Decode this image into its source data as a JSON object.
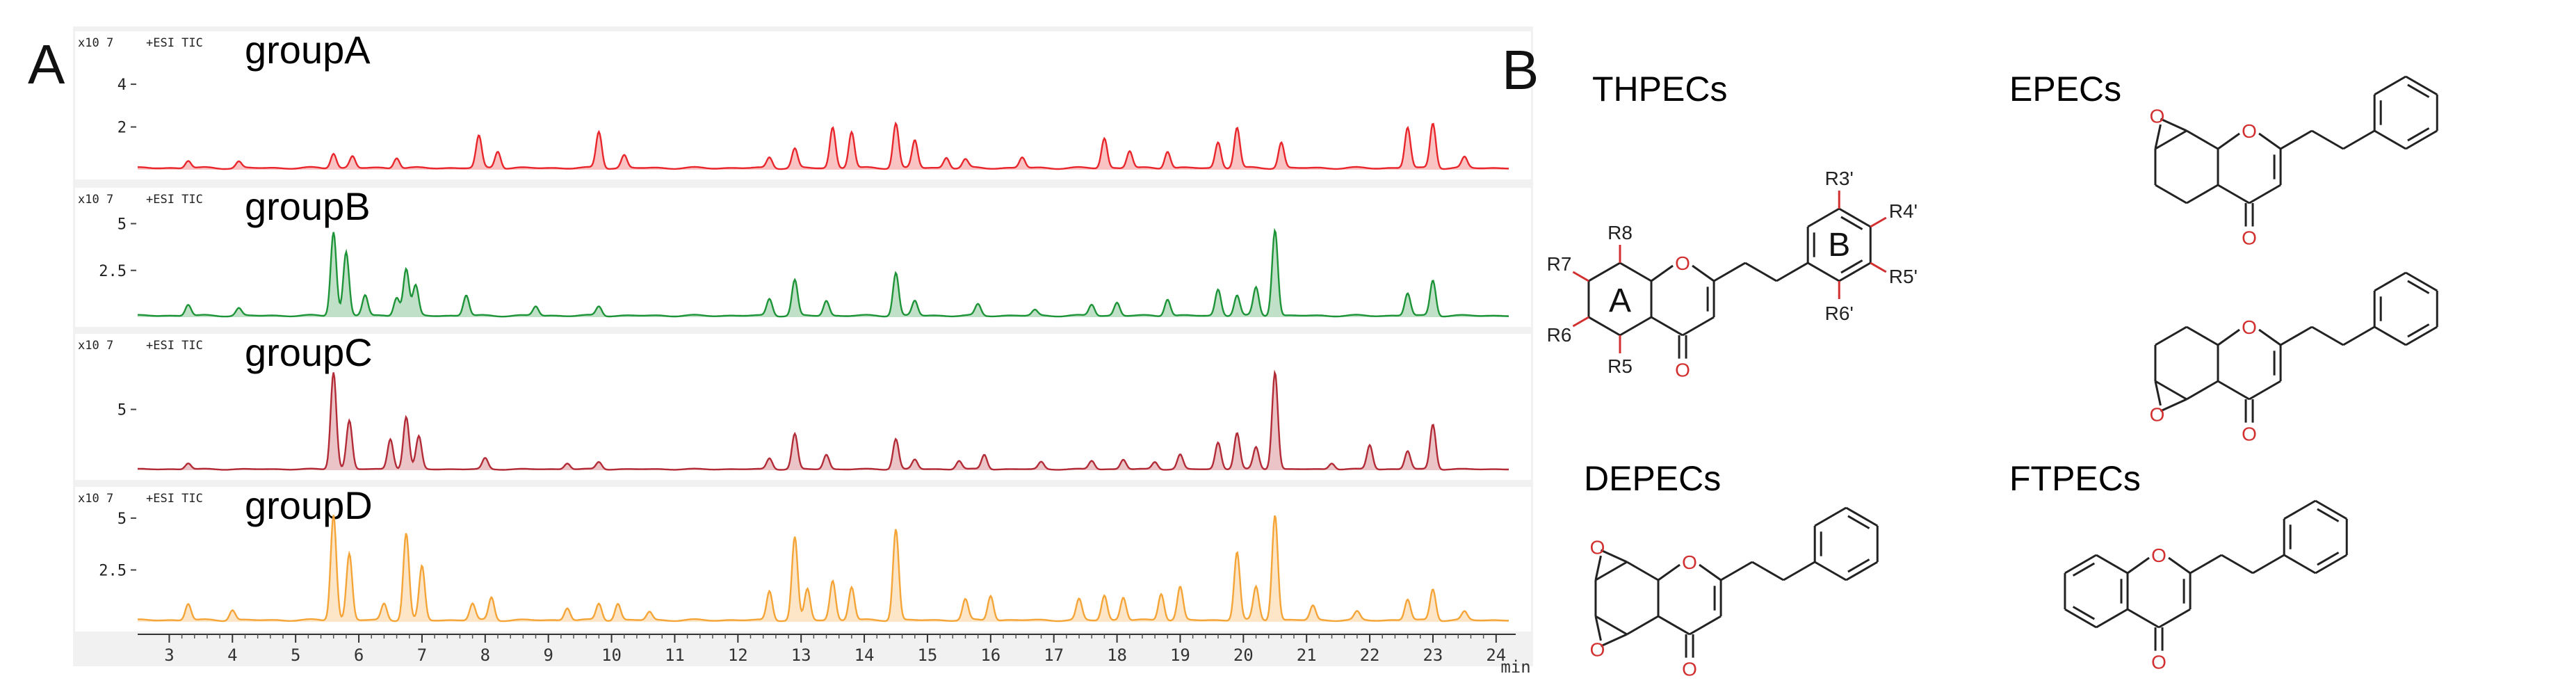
{
  "panels": {
    "A": "A",
    "B": "B"
  },
  "chart_data": {
    "type": "line",
    "title": "",
    "xlabel": "min",
    "xlim": [
      2.5,
      24.2
    ],
    "x_ticks": [
      3,
      4,
      5,
      6,
      7,
      8,
      9,
      10,
      11,
      12,
      13,
      14,
      15,
      16,
      17,
      18,
      19,
      20,
      21,
      22,
      23,
      24
    ],
    "series": [
      {
        "name": "groupA",
        "scale": "x10 7",
        "mode": "+ESI TIC",
        "color": "#e8262b",
        "ylim": [
          0,
          5.5
        ],
        "yticks": [
          2,
          4
        ],
        "peaks": [
          [
            3.3,
            0.35
          ],
          [
            4.1,
            0.3
          ],
          [
            5.6,
            0.7
          ],
          [
            5.9,
            0.55
          ],
          [
            6.6,
            0.5
          ],
          [
            7.9,
            1.5
          ],
          [
            8.2,
            0.8
          ],
          [
            9.8,
            1.7
          ],
          [
            10.2,
            0.6
          ],
          [
            12.5,
            0.5
          ],
          [
            12.9,
            0.9
          ],
          [
            13.5,
            1.9
          ],
          [
            13.8,
            1.7
          ],
          [
            14.5,
            2.1
          ],
          [
            14.8,
            1.3
          ],
          [
            15.3,
            0.5
          ],
          [
            15.6,
            0.4
          ],
          [
            16.5,
            0.5
          ],
          [
            17.8,
            1.4
          ],
          [
            18.2,
            0.8
          ],
          [
            18.8,
            0.8
          ],
          [
            19.6,
            1.2
          ],
          [
            19.9,
            1.9
          ],
          [
            20.6,
            1.2
          ],
          [
            22.6,
            1.9
          ],
          [
            23.0,
            2.1
          ],
          [
            23.5,
            0.5
          ]
        ]
      },
      {
        "name": "groupB",
        "scale": "x10 7",
        "mode": "+ESI TIC",
        "color": "#1e9438",
        "ylim": [
          0,
          5.8
        ],
        "yticks": [
          2.5,
          5
        ],
        "peaks": [
          [
            3.3,
            0.6
          ],
          [
            4.1,
            0.4
          ],
          [
            5.6,
            4.5
          ],
          [
            5.8,
            3.4
          ],
          [
            6.1,
            1.1
          ],
          [
            6.6,
            1.0
          ],
          [
            6.75,
            2.5
          ],
          [
            6.9,
            1.6
          ],
          [
            7.7,
            1.1
          ],
          [
            8.8,
            0.5
          ],
          [
            9.8,
            0.5
          ],
          [
            12.5,
            0.9
          ],
          [
            12.9,
            1.9
          ],
          [
            13.4,
            0.8
          ],
          [
            14.5,
            2.3
          ],
          [
            14.8,
            0.8
          ],
          [
            15.8,
            0.6
          ],
          [
            16.7,
            0.3
          ],
          [
            17.6,
            0.6
          ],
          [
            18.0,
            0.7
          ],
          [
            18.8,
            0.9
          ],
          [
            19.6,
            1.4
          ],
          [
            19.9,
            1.1
          ],
          [
            20.2,
            1.5
          ],
          [
            20.5,
            4.6
          ],
          [
            22.6,
            1.2
          ],
          [
            23.0,
            1.9
          ]
        ]
      },
      {
        "name": "groupC",
        "scale": "x10 7",
        "mode": "+ESI TIC",
        "color": "#b22b36",
        "ylim": [
          0,
          9.5
        ],
        "yticks": [
          5
        ],
        "peaks": [
          [
            3.3,
            0.5
          ],
          [
            5.6,
            8.0
          ],
          [
            5.85,
            4.0
          ],
          [
            6.5,
            2.5
          ],
          [
            6.75,
            4.3
          ],
          [
            6.95,
            2.7
          ],
          [
            8.0,
            0.9
          ],
          [
            9.3,
            0.5
          ],
          [
            9.8,
            0.6
          ],
          [
            12.5,
            0.9
          ],
          [
            12.9,
            2.9
          ],
          [
            13.4,
            1.2
          ],
          [
            14.5,
            2.5
          ],
          [
            14.8,
            0.8
          ],
          [
            15.5,
            0.7
          ],
          [
            15.9,
            1.2
          ],
          [
            16.8,
            0.6
          ],
          [
            17.6,
            0.7
          ],
          [
            18.1,
            0.8
          ],
          [
            18.6,
            0.6
          ],
          [
            19.0,
            1.2
          ],
          [
            19.6,
            2.2
          ],
          [
            19.9,
            3.0
          ],
          [
            20.2,
            1.8
          ],
          [
            20.5,
            8.0
          ],
          [
            21.4,
            0.5
          ],
          [
            22.0,
            2.0
          ],
          [
            22.6,
            1.5
          ],
          [
            23.0,
            3.7
          ]
        ]
      },
      {
        "name": "groupD",
        "scale": "x10 7",
        "mode": "+ESI TIC",
        "color": "#f5a437",
        "ylim": [
          0,
          5.5
        ],
        "yticks": [
          2.5,
          5
        ],
        "peaks": [
          [
            3.3,
            0.8
          ],
          [
            4.0,
            0.5
          ],
          [
            5.6,
            5.1
          ],
          [
            5.85,
            3.2
          ],
          [
            6.4,
            0.8
          ],
          [
            6.75,
            4.2
          ],
          [
            7.0,
            2.6
          ],
          [
            7.8,
            0.8
          ],
          [
            8.1,
            1.1
          ],
          [
            9.3,
            0.6
          ],
          [
            9.8,
            0.8
          ],
          [
            10.1,
            0.8
          ],
          [
            10.6,
            0.4
          ],
          [
            12.5,
            1.4
          ],
          [
            12.9,
            4.0
          ],
          [
            13.1,
            1.5
          ],
          [
            13.5,
            1.9
          ],
          [
            13.8,
            1.6
          ],
          [
            14.5,
            4.4
          ],
          [
            15.6,
            1.0
          ],
          [
            16.0,
            1.2
          ],
          [
            17.4,
            1.0
          ],
          [
            17.8,
            1.2
          ],
          [
            18.1,
            1.1
          ],
          [
            18.7,
            1.3
          ],
          [
            19.0,
            1.6
          ],
          [
            19.9,
            3.3
          ],
          [
            20.2,
            1.6
          ],
          [
            20.5,
            5.1
          ],
          [
            21.1,
            0.7
          ],
          [
            21.8,
            0.4
          ],
          [
            22.6,
            1.0
          ],
          [
            23.0,
            1.5
          ],
          [
            23.5,
            0.4
          ]
        ]
      }
    ]
  },
  "structures": {
    "classes": [
      "THPECs",
      "EPECs",
      "DEPECs",
      "FTPECs"
    ],
    "ring_labels": [
      "A",
      "B"
    ],
    "substituents": [
      "R3'",
      "R4'",
      "R5'",
      "R6'",
      "R5",
      "R6",
      "R7",
      "R8"
    ],
    "oxygen": "O",
    "colors": {
      "bond": "#222222",
      "oxygen": "#d23030"
    }
  }
}
